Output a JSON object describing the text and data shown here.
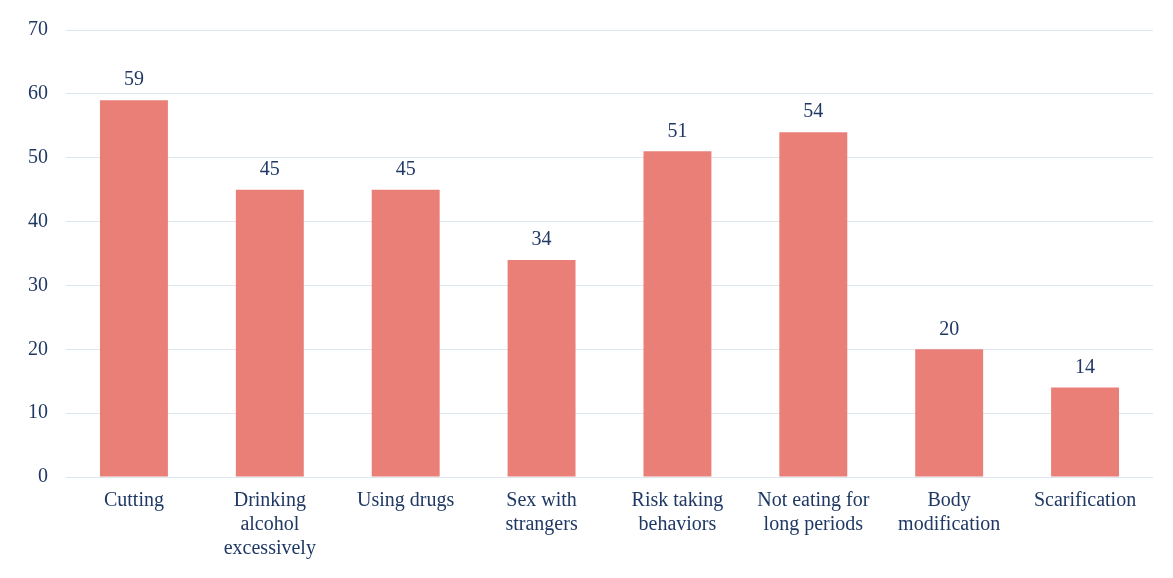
{
  "chart_data": {
    "type": "bar",
    "categories": [
      "Cutting",
      "Drinking alcohol excessively",
      "Using drugs",
      "Sex with strangers",
      "Risk taking behaviors",
      "Not eating for long periods",
      "Body modification",
      "Scarification"
    ],
    "values": [
      59,
      45,
      45,
      34,
      51,
      54,
      20,
      14
    ],
    "color": "#ea7f78",
    "ylim": [
      0,
      70
    ],
    "yticks": [
      0,
      10,
      20,
      30,
      40,
      50,
      60,
      70
    ],
    "grid": "y",
    "data_labels": true,
    "legend": false
  }
}
